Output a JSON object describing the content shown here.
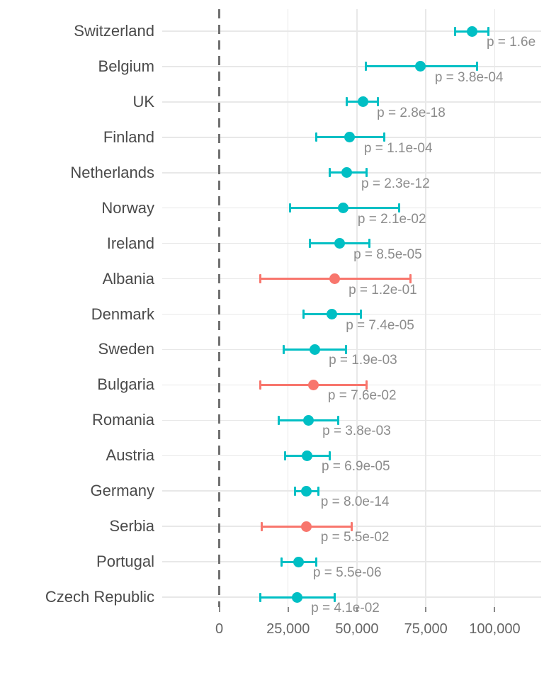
{
  "colors": {
    "teal": "#00BFC4",
    "salmon": "#F8766D",
    "grid": "#e8e8e8",
    "zero_line": "#707070",
    "country_text": "#4a4a4a",
    "p_text": "#8c8c8c",
    "axis_text": "#666666"
  },
  "chart_data": {
    "type": "scatter",
    "subtype": "forest-plot-with-error-bars",
    "title": "",
    "xlabel": "",
    "ylabel": "",
    "xlim": [
      -20700,
      116800
    ],
    "grid": "on",
    "legend": "none",
    "reference_line": {
      "value": 0,
      "style": "dashed"
    },
    "x_ticks": [
      {
        "label": "0",
        "value": 0
      },
      {
        "label": "25,000",
        "value": 25000
      },
      {
        "label": "50,000",
        "value": 50000
      },
      {
        "label": "75,000",
        "value": 75000
      },
      {
        "label": "100,000",
        "value": 100000
      }
    ],
    "rows": [
      {
        "country": "Switzerland",
        "estimate": 91900,
        "ci_low": 85700,
        "ci_high": 97600,
        "p_label": "p = 1.6e",
        "color_key": "teal"
      },
      {
        "country": "Belgium",
        "estimate": 73100,
        "ci_low": 53100,
        "ci_high": 93700,
        "p_label": "p = 3.8e-04",
        "color_key": "teal"
      },
      {
        "country": "UK",
        "estimate": 52100,
        "ci_low": 46400,
        "ci_high": 57500,
        "p_label": "p = 2.8e-18",
        "color_key": "teal"
      },
      {
        "country": "Finland",
        "estimate": 47400,
        "ci_low": 35300,
        "ci_high": 59800,
        "p_label": "p = 1.1e-04",
        "color_key": "teal"
      },
      {
        "country": "Netherlands",
        "estimate": 46400,
        "ci_low": 40200,
        "ci_high": 53400,
        "p_label": "p = 2.3e-12",
        "color_key": "teal"
      },
      {
        "country": "Norway",
        "estimate": 45100,
        "ci_low": 25800,
        "ci_high": 65200,
        "p_label": "p = 2.1e-02",
        "color_key": "teal"
      },
      {
        "country": "Ireland",
        "estimate": 43600,
        "ci_low": 32800,
        "ci_high": 54600,
        "p_label": "p = 8.5e-05",
        "color_key": "teal"
      },
      {
        "country": "Albania",
        "estimate": 41800,
        "ci_low": 14800,
        "ci_high": 69300,
        "p_label": "p = 1.2e-01",
        "color_key": "salmon"
      },
      {
        "country": "Denmark",
        "estimate": 40800,
        "ci_low": 30700,
        "ci_high": 51300,
        "p_label": "p = 7.4e-05",
        "color_key": "teal"
      },
      {
        "country": "Sweden",
        "estimate": 34600,
        "ci_low": 23500,
        "ci_high": 45900,
        "p_label": "p = 1.9e-03",
        "color_key": "teal"
      },
      {
        "country": "Bulgaria",
        "estimate": 34300,
        "ci_low": 15000,
        "ci_high": 53400,
        "p_label": "p = 7.6e-02",
        "color_key": "salmon"
      },
      {
        "country": "Romania",
        "estimate": 32300,
        "ci_low": 21500,
        "ci_high": 43300,
        "p_label": "p = 3.8e-03",
        "color_key": "teal"
      },
      {
        "country": "Austria",
        "estimate": 32000,
        "ci_low": 24000,
        "ci_high": 40200,
        "p_label": "p = 6.9e-05",
        "color_key": "teal"
      },
      {
        "country": "Germany",
        "estimate": 31700,
        "ci_low": 27600,
        "ci_high": 35900,
        "p_label": "p = 8.0e-14",
        "color_key": "teal"
      },
      {
        "country": "Serbia",
        "estimate": 31700,
        "ci_low": 15300,
        "ci_high": 48200,
        "p_label": "p = 5.5e-02",
        "color_key": "salmon"
      },
      {
        "country": "Portugal",
        "estimate": 28900,
        "ci_low": 22500,
        "ci_high": 35300,
        "p_label": "p = 5.5e-06",
        "color_key": "teal"
      },
      {
        "country": "Czech Republic",
        "estimate": 28200,
        "ci_low": 14800,
        "ci_high": 42000,
        "p_label": "p = 4.1e-02",
        "color_key": "teal"
      }
    ]
  }
}
